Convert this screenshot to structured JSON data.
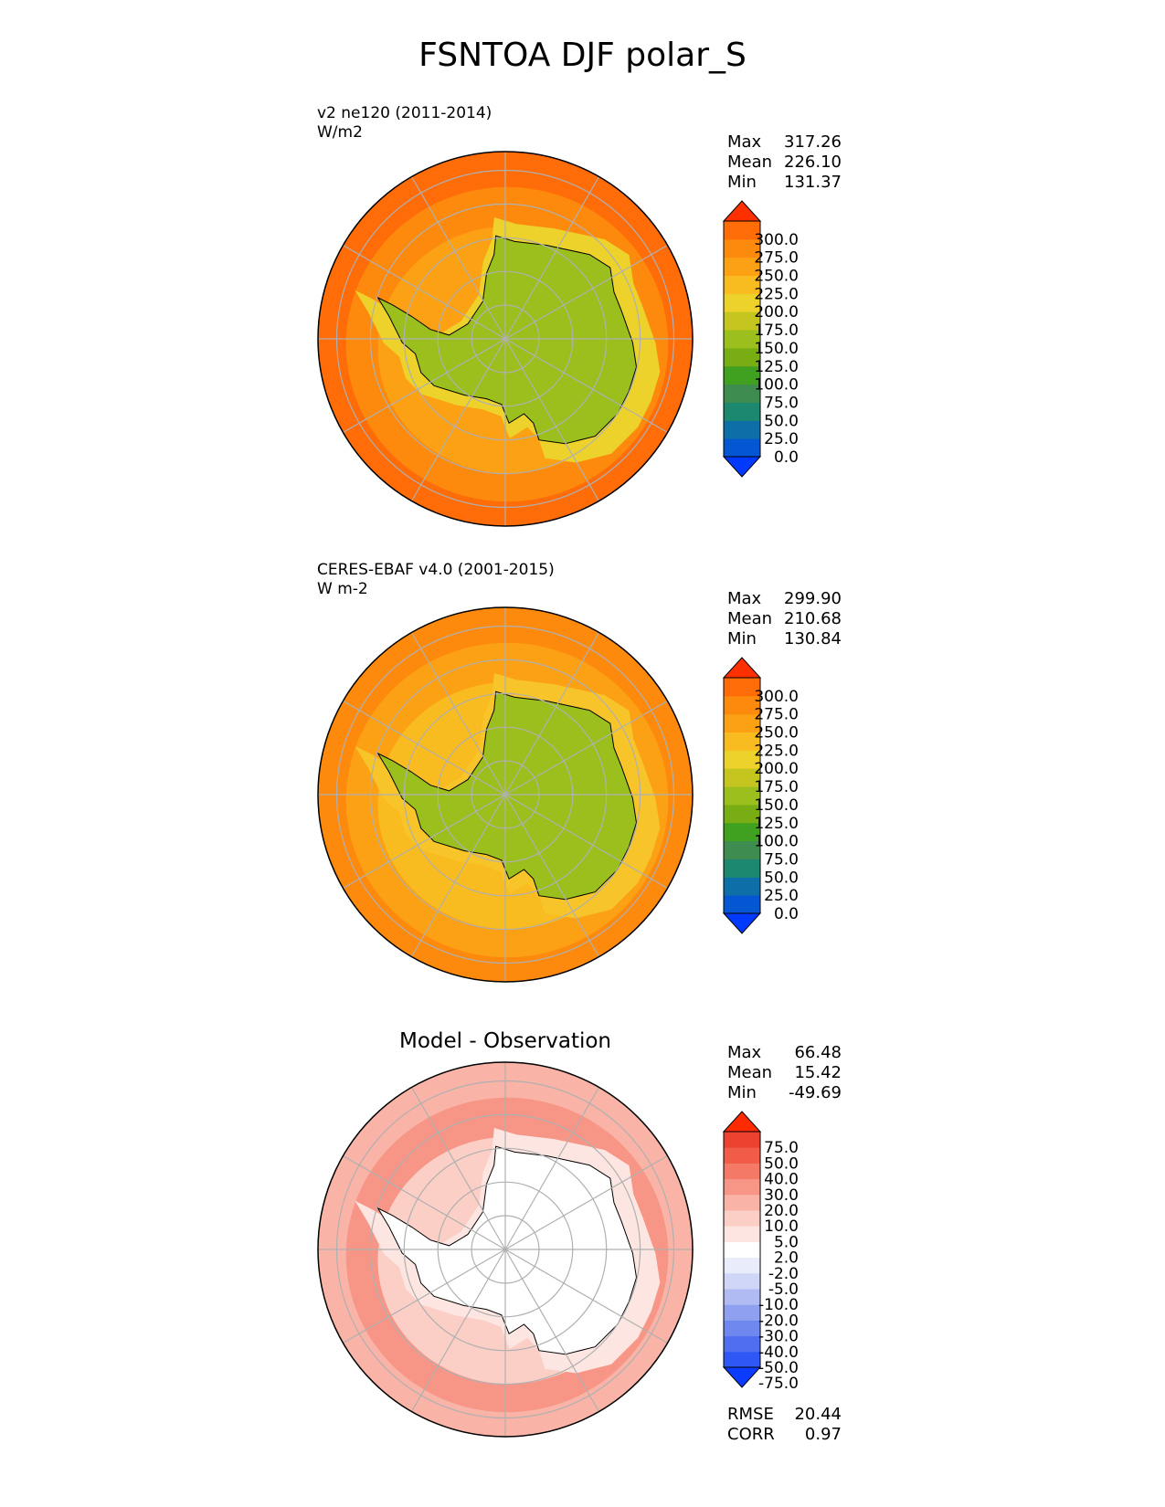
{
  "figure": {
    "title": "FSNTOA DJF polar_S"
  },
  "chart_data": [
    {
      "type": "heatmap",
      "projection": "south polar stereographic",
      "title": "v2 ne120 (2011-2014)",
      "units": "W/m2",
      "stats": {
        "max": "317.26",
        "mean": "226.10",
        "min": "131.37"
      },
      "colorbar": {
        "ticks": [
          "300.0",
          "275.0",
          "250.0",
          "225.0",
          "200.0",
          "175.0",
          "150.0",
          "125.0",
          "100.0",
          "75.0",
          "50.0",
          "25.0",
          "0.0"
        ],
        "colors": [
          "#0039ff",
          "#0456d2",
          "#0e6fa8",
          "#1d8870",
          "#3e8c50",
          "#40a020",
          "#78ad14",
          "#9bbf1c",
          "#c4c51f",
          "#ecd22b",
          "#f9bc20",
          "#fca014",
          "#fd8a0d",
          "#ff6c08",
          "#ff3000"
        ],
        "extend": "both"
      },
      "fill": {
        "ocean_outer": "#ff6c08",
        "ocean_mid": "#fd8a0d",
        "ocean_inner": "#fca014",
        "sea_ice": "#ecd22b",
        "continent": "#9bbf1c"
      }
    },
    {
      "type": "heatmap",
      "projection": "south polar stereographic",
      "title": "CERES-EBAF v4.0 (2001-2015)",
      "units": "W m-2",
      "stats": {
        "max": "299.90",
        "mean": "210.68",
        "min": "130.84"
      },
      "colorbar": {
        "ticks": [
          "300.0",
          "275.0",
          "250.0",
          "225.0",
          "200.0",
          "175.0",
          "150.0",
          "125.0",
          "100.0",
          "75.0",
          "50.0",
          "25.0",
          "0.0"
        ],
        "colors": [
          "#0039ff",
          "#0456d2",
          "#0e6fa8",
          "#1d8870",
          "#3e8c50",
          "#40a020",
          "#78ad14",
          "#9bbf1c",
          "#c4c51f",
          "#ecd22b",
          "#f9bc20",
          "#fca014",
          "#fd8a0d",
          "#ff6c08",
          "#ff3000"
        ],
        "extend": "both"
      },
      "fill": {
        "ocean_outer": "#fd8a0d",
        "ocean_mid": "#fca014",
        "ocean_inner": "#f9bc20",
        "sea_ice": "#f7c52a",
        "continent": "#9bbf1c"
      }
    },
    {
      "type": "heatmap",
      "projection": "south polar stereographic",
      "title": "Model - Observation",
      "stats": {
        "max": "66.48",
        "mean": "15.42",
        "min": "-49.69"
      },
      "metrics": {
        "rmse": "20.44",
        "corr": "0.97"
      },
      "colorbar": {
        "ticks": [
          "75.0",
          "50.0",
          "40.0",
          "30.0",
          "20.0",
          "10.0",
          "5.0",
          "2.0",
          "-2.0",
          "-5.0",
          "-10.0",
          "-20.0",
          "-30.0",
          "-40.0",
          "-50.0",
          "-75.0"
        ],
        "colors": [
          "#0a3bff",
          "#2f57f5",
          "#4f6ff0",
          "#6f88f0",
          "#8fa0f0",
          "#b0bbf3",
          "#cfd6f7",
          "#e8ecfb",
          "#ffffff",
          "#fde6e2",
          "#fbcfc6",
          "#f9b3a7",
          "#f79686",
          "#f47a67",
          "#f05c48",
          "#ee4230",
          "#ff2a00"
        ],
        "extend": "both"
      },
      "fill": {
        "ocean_outer": "#f9b3a7",
        "ocean_mid": "#f79686",
        "ocean_inner": "#fbcfc6",
        "sea_ice": "#fde6e2",
        "continent": "#ffffff"
      }
    }
  ],
  "labels": {
    "max": "Max",
    "mean": "Mean",
    "min": "Min",
    "rmse": "RMSE",
    "corr": "CORR"
  }
}
